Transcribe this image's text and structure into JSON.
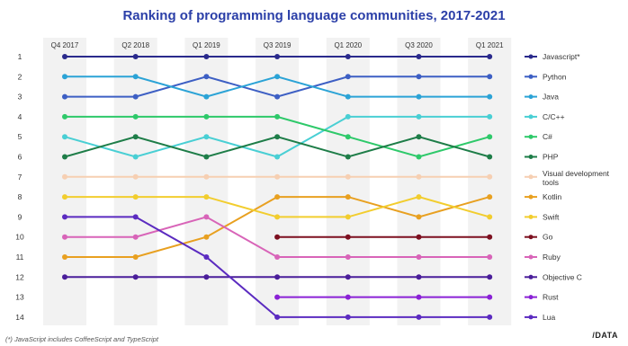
{
  "chart_data": {
    "type": "line",
    "title": "Ranking of programming language communities, 2017-2021",
    "x": [
      "Q4 2017",
      "Q2 2018",
      "Q1 2019",
      "Q3 2019",
      "Q1 2020",
      "Q3 2020",
      "Q1 2021"
    ],
    "ylim": [
      1,
      14
    ],
    "y_reversed": true,
    "y_ticks": [
      1,
      2,
      3,
      4,
      5,
      6,
      7,
      8,
      9,
      10,
      11,
      12,
      13,
      14
    ],
    "grid": "vertical bands",
    "legend_placement": "right",
    "series": [
      {
        "name": "Javascript*",
        "color": "#2a2a8c",
        "values": [
          1,
          1,
          1,
          1,
          1,
          1,
          1
        ]
      },
      {
        "name": "Python",
        "color": "#3d5fc4",
        "values": [
          3,
          3,
          2,
          3,
          2,
          2,
          2
        ]
      },
      {
        "name": "Java",
        "color": "#2ba3d6",
        "values": [
          2,
          2,
          3,
          2,
          3,
          3,
          3
        ]
      },
      {
        "name": "C/C++",
        "color": "#49cfd4",
        "values": [
          5,
          6,
          5,
          6,
          4,
          4,
          4
        ]
      },
      {
        "name": "C#",
        "color": "#2ec96a",
        "values": [
          4,
          4,
          4,
          4,
          5,
          6,
          5
        ]
      },
      {
        "name": "PHP",
        "color": "#1e7d48",
        "values": [
          6,
          5,
          6,
          5,
          6,
          5,
          6
        ]
      },
      {
        "name": "Visual development tools",
        "color": "#f6cfb2",
        "values": [
          7,
          7,
          7,
          7,
          7,
          7,
          7
        ]
      },
      {
        "name": "Kotlin",
        "color": "#e8a020",
        "values": [
          11,
          11,
          10,
          8,
          8,
          9,
          8
        ]
      },
      {
        "name": "Swift",
        "color": "#f2cd2e",
        "values": [
          8,
          8,
          8,
          9,
          9,
          8,
          9
        ]
      },
      {
        "name": "Go",
        "color": "#7d1020",
        "values": [
          null,
          null,
          null,
          10,
          10,
          10,
          10
        ]
      },
      {
        "name": "Ruby",
        "color": "#d864b8",
        "values": [
          10,
          10,
          9,
          11,
          11,
          11,
          11
        ]
      },
      {
        "name": "Objective C",
        "color": "#4a1e9a",
        "values": [
          12,
          12,
          12,
          12,
          12,
          12,
          12
        ]
      },
      {
        "name": "Rust",
        "color": "#8a22d6",
        "values": [
          null,
          null,
          null,
          13,
          13,
          13,
          13
        ]
      },
      {
        "name": "Lua",
        "color": "#5b2bc0",
        "values": [
          9,
          9,
          11,
          14,
          14,
          14,
          14
        ]
      }
    ]
  },
  "legend_icon": "line-with-dot-icon",
  "footnote": "(*) JavaScript includes CoffeeScript and TypeScript",
  "logo_text": "/DATA",
  "colors": {
    "title": "#2b3fa8",
    "band": "#f2f2f2"
  }
}
